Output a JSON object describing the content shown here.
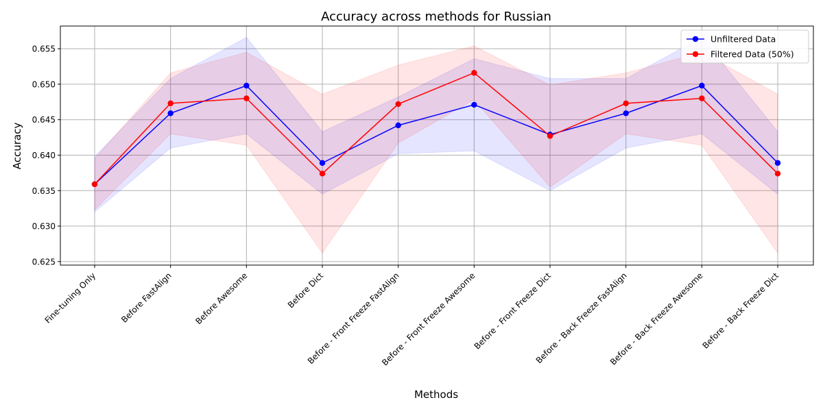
{
  "chart_data": {
    "type": "line",
    "title": "Accuracy across methods for Russian",
    "xlabel": "Methods",
    "ylabel": "Accuracy",
    "categories": [
      "Fine-tuning Only",
      "Before FastAlign",
      "Before Awesome",
      "Before Dict",
      "Before - Front Freeze FastAlign",
      "Before - Front Freeze Awesome",
      "Before - Front Freeze Dict",
      "Before - Back Freeze FastAlign",
      "Before - Back Freeze Awesome",
      "Before - Back Freeze Dict"
    ],
    "ylim": [
      0.6245,
      0.6582
    ],
    "yticks": [
      "0.625",
      "0.630",
      "0.635",
      "0.640",
      "0.645",
      "0.650",
      "0.655"
    ],
    "grid": true,
    "legend_position": "top-right",
    "series": [
      {
        "name": "Unfiltered Data",
        "color": "#0000ff",
        "band_color": "#0000ff",
        "values": [
          0.6359,
          0.6459,
          0.6498,
          0.6389,
          0.6442,
          0.6471,
          0.6429,
          0.6459,
          0.6498,
          0.6389
        ],
        "lower": [
          0.632,
          0.641,
          0.643,
          0.6345,
          0.6402,
          0.6406,
          0.635,
          0.641,
          0.643,
          0.6345
        ],
        "upper": [
          0.6398,
          0.6508,
          0.6566,
          0.6433,
          0.6482,
          0.6536,
          0.6508,
          0.6508,
          0.6566,
          0.6433
        ]
      },
      {
        "name": "Filtered Data (50%)",
        "color": "#ff0000",
        "band_color": "#ff0000",
        "values": [
          0.6359,
          0.6473,
          0.648,
          0.6374,
          0.6472,
          0.6516,
          0.6427,
          0.6473,
          0.648,
          0.6374
        ],
        "lower": [
          0.6323,
          0.643,
          0.6414,
          0.6262,
          0.6417,
          0.6478,
          0.6355,
          0.643,
          0.6414,
          0.6262
        ],
        "upper": [
          0.6395,
          0.6516,
          0.6545,
          0.6486,
          0.6527,
          0.6554,
          0.6499,
          0.6516,
          0.6545,
          0.6486
        ]
      }
    ]
  }
}
